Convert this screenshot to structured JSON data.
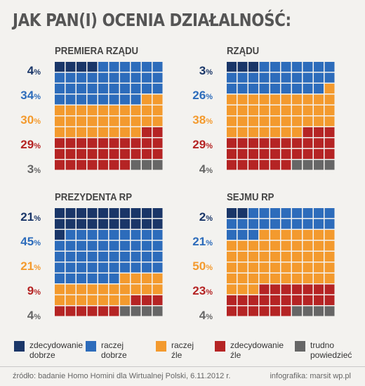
{
  "title": "JAK PAN(I) OCENIA DZIAŁALNOŚĆ:",
  "colors": {
    "zdecydowanie_dobrze": "#1a3668",
    "raczej_dobrze": "#2d6cbb",
    "raczej_zle": "#f39a2e",
    "zdecydowanie_zle": "#b52424",
    "trudno_powiedziec": "#666666"
  },
  "chart_data": [
    {
      "type": "waffle",
      "title": "PREMIERA RZĄDU",
      "categories": [
        "zdecydowanie dobrze",
        "raczej dobrze",
        "raczej źle",
        "zdecydowanie źle",
        "trudno powiedzieć"
      ],
      "values": [
        4,
        34,
        30,
        29,
        3
      ],
      "labels": [
        "4",
        "34",
        "30",
        "29",
        "3"
      ]
    },
    {
      "type": "waffle",
      "title": "RZĄDU",
      "categories": [
        "zdecydowanie dobrze",
        "raczej dobrze",
        "raczej źle",
        "zdecydowanie źle",
        "trudno powiedzieć"
      ],
      "values": [
        3,
        26,
        38,
        29,
        4
      ],
      "labels": [
        "3",
        "26",
        "38",
        "29",
        "4"
      ]
    },
    {
      "type": "waffle",
      "title": "PREZYDENTA RP",
      "categories": [
        "zdecydowanie dobrze",
        "raczej dobrze",
        "raczej źle",
        "zdecydowanie źle",
        "trudno powiedzieć"
      ],
      "values": [
        21,
        45,
        21,
        9,
        4
      ],
      "labels": [
        "21",
        "45",
        "21",
        "9",
        "4"
      ]
    },
    {
      "type": "waffle",
      "title": "SEJMU RP",
      "categories": [
        "zdecydowanie dobrze",
        "raczej dobrze",
        "raczej źle",
        "zdecydowanie źle",
        "trudno powiedzieć"
      ],
      "values": [
        2,
        21,
        50,
        23,
        4
      ],
      "labels": [
        "2",
        "21",
        "50",
        "23",
        "4"
      ]
    }
  ],
  "percent_sign": "%",
  "legend": [
    {
      "line1": "zdecydowanie",
      "line2": "dobrze",
      "color": "#1a3668"
    },
    {
      "line1": "raczej",
      "line2": "dobrze",
      "color": "#2d6cbb"
    },
    {
      "line1": "raczej",
      "line2": "źle",
      "color": "#f39a2e"
    },
    {
      "line1": "zdecydowanie",
      "line2": "źle",
      "color": "#b52424"
    },
    {
      "line1": "trudno",
      "line2": "powiedzieć",
      "color": "#666666"
    }
  ],
  "footer": {
    "source": "źródło: badanie Homo Homini dla Wirtualnej Polski, 6.11.2012 r.",
    "credit": "infografika: marsit wp.pl"
  }
}
